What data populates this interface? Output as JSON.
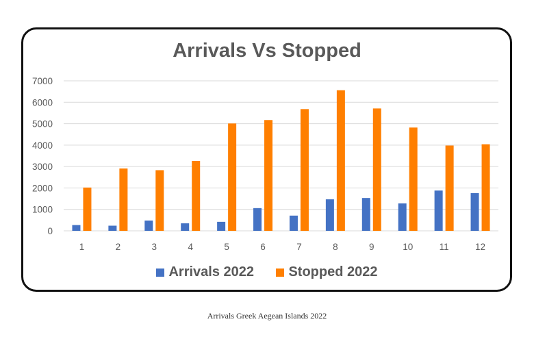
{
  "caption": "Arrivals Greek Aegean Islands 2022",
  "colors": {
    "arrivals": "#4472C4",
    "stopped": "#FF7F00",
    "grid": "#D9D9D9",
    "text": "#595959"
  },
  "chart_data": {
    "type": "bar",
    "title": "Arrivals Vs Stopped",
    "xlabel": "",
    "ylabel": "",
    "categories": [
      "1",
      "2",
      "3",
      "4",
      "5",
      "6",
      "7",
      "8",
      "9",
      "10",
      "11",
      "12"
    ],
    "series": [
      {
        "name": "Arrivals 2022",
        "values": [
          270,
          240,
          480,
          350,
          420,
          1060,
          710,
          1470,
          1530,
          1280,
          1880,
          1760
        ]
      },
      {
        "name": "Stopped 2022",
        "values": [
          2020,
          2910,
          2830,
          3260,
          5010,
          5170,
          5680,
          6560,
          5710,
          4820,
          3980,
          4040
        ]
      }
    ],
    "ylim": [
      0,
      7000
    ],
    "yticks": [
      0,
      1000,
      2000,
      3000,
      4000,
      5000,
      6000,
      7000
    ],
    "grid": true,
    "legend": "bottom"
  }
}
